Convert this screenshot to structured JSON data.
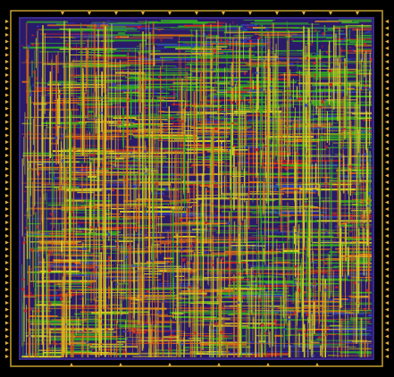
{
  "view": {
    "kind": "chip-layout-routing-view",
    "background": "#000000"
  },
  "colors": {
    "die_boundary": "#c8a030",
    "core_ring": "#3a2a8a",
    "substrate": "#2a1a6a",
    "metal_green": "#30b020",
    "metal_yellow": "#d8d020",
    "metal_orange": "#e07010",
    "metal_red": "#d02020",
    "metal_blue": "#3040c0",
    "io_pin": "#e8b040"
  },
  "icons": {
    "io_pin": "triangle-pin-icon"
  }
}
